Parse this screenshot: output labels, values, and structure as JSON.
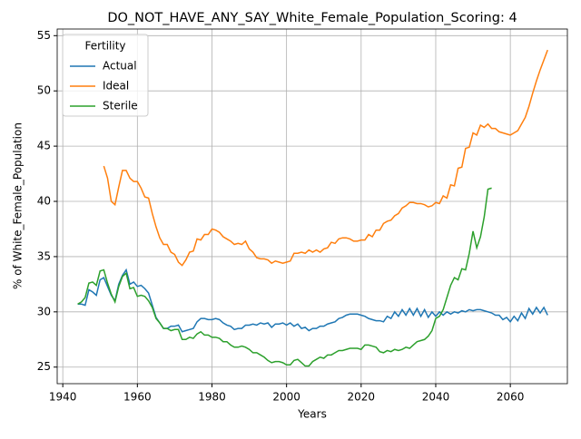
{
  "chart_data": {
    "type": "line",
    "title": "DO_NOT_HAVE_ANY_SAY_White_Female_Population_Scoring: 4",
    "x_label": "Years",
    "y_label": "% of White_Female_Population",
    "legend_title": "Fertility",
    "legend_position": "upper left",
    "grid": true,
    "xlim": [
      1938.5,
      2075.3
    ],
    "ylim": [
      23.5,
      55.6
    ],
    "xticks": [
      1940,
      1960,
      1980,
      2000,
      2020,
      2040,
      2060
    ],
    "yticks": [
      25,
      30,
      35,
      40,
      45,
      50,
      55
    ],
    "x": [
      1944,
      1945,
      1946,
      1947,
      1948,
      1949,
      1950,
      1951,
      1952,
      1953,
      1954,
      1955,
      1956,
      1957,
      1958,
      1959,
      1960,
      1961,
      1962,
      1963,
      1964,
      1965,
      1966,
      1967,
      1968,
      1969,
      1970,
      1971,
      1972,
      1973,
      1974,
      1975,
      1976,
      1977,
      1978,
      1979,
      1980,
      1981,
      1982,
      1983,
      1984,
      1985,
      1986,
      1987,
      1988,
      1989,
      1990,
      1991,
      1992,
      1993,
      1994,
      1995,
      1996,
      1997,
      1998,
      1999,
      2000,
      2001,
      2002,
      2003,
      2004,
      2005,
      2006,
      2007,
      2008,
      2009,
      2010,
      2011,
      2012,
      2013,
      2014,
      2015,
      2016,
      2017,
      2018,
      2019,
      2020,
      2021,
      2022,
      2023,
      2024,
      2025,
      2026,
      2027,
      2028,
      2029,
      2030,
      2031,
      2032,
      2033,
      2034,
      2035,
      2036,
      2037,
      2038,
      2039,
      2040,
      2041,
      2042,
      2043,
      2044,
      2045,
      2046,
      2047,
      2048,
      2049,
      2050,
      2051,
      2052,
      2053,
      2054,
      2055,
      2056,
      2057,
      2058,
      2059,
      2060,
      2061,
      2062,
      2063,
      2064,
      2065,
      2066,
      2067,
      2068,
      2069,
      2070
    ],
    "series": [
      {
        "name": "Actual",
        "color": "#1f77b4",
        "values": [
          30.7,
          30.7,
          30.6,
          32.0,
          31.8,
          31.5,
          32.9,
          33.1,
          32.3,
          31.5,
          31.0,
          32.5,
          33.3,
          33.8,
          32.5,
          32.7,
          32.3,
          32.4,
          32.1,
          31.7,
          30.6,
          29.5,
          29.0,
          28.5,
          28.5,
          28.7,
          28.7,
          28.8,
          28.2,
          28.3,
          28.4,
          28.5,
          29.1,
          29.4,
          29.4,
          29.3,
          29.3,
          29.4,
          29.3,
          29.0,
          28.8,
          28.7,
          28.4,
          28.5,
          28.5,
          28.8,
          28.8,
          28.9,
          28.8,
          29.0,
          28.9,
          29.0,
          28.6,
          28.9,
          28.9,
          29.0,
          28.8,
          29.0,
          28.7,
          28.9,
          28.5,
          28.6,
          28.3,
          28.5,
          28.5,
          28.7,
          28.7,
          28.9,
          29.0,
          29.1,
          29.4,
          29.5,
          29.7,
          29.8,
          29.8,
          29.8,
          29.7,
          29.6,
          29.4,
          29.3,
          29.2,
          29.2,
          29.1,
          29.6,
          29.4,
          30.0,
          29.6,
          30.2,
          29.7,
          30.3,
          29.7,
          30.3,
          29.6,
          30.2,
          29.5,
          30.0,
          29.6,
          30.0,
          29.7,
          30.0,
          29.8,
          30.0,
          29.9,
          30.1,
          30.0,
          30.2,
          30.1,
          30.2,
          30.2,
          30.1,
          30.0,
          29.9,
          29.7,
          29.7,
          29.3,
          29.5,
          29.1,
          29.6,
          29.2,
          29.9,
          29.4,
          30.3,
          29.8,
          30.4,
          29.9,
          30.4,
          29.7
        ]
      },
      {
        "name": "Ideal",
        "color": "#ff7f0e",
        "values": [
          null,
          null,
          null,
          null,
          null,
          null,
          null,
          43.2,
          42.1,
          40.0,
          39.7,
          41.3,
          42.8,
          42.8,
          42.1,
          41.8,
          41.8,
          41.2,
          40.4,
          40.3,
          38.9,
          37.7,
          36.7,
          36.1,
          36.1,
          35.4,
          35.2,
          34.5,
          34.2,
          34.7,
          35.4,
          35.5,
          36.6,
          36.5,
          37.0,
          37.0,
          37.5,
          37.4,
          37.2,
          36.8,
          36.6,
          36.4,
          36.1,
          36.2,
          36.1,
          36.4,
          35.7,
          35.4,
          34.9,
          34.8,
          34.8,
          34.7,
          34.4,
          34.6,
          34.5,
          34.4,
          34.5,
          34.6,
          35.3,
          35.3,
          35.4,
          35.3,
          35.6,
          35.4,
          35.6,
          35.4,
          35.7,
          35.8,
          36.3,
          36.2,
          36.6,
          36.7,
          36.7,
          36.6,
          36.4,
          36.4,
          36.5,
          36.5,
          37.0,
          36.8,
          37.4,
          37.4,
          38.0,
          38.2,
          38.3,
          38.7,
          38.9,
          39.4,
          39.6,
          39.9,
          39.9,
          39.8,
          39.8,
          39.7,
          39.5,
          39.6,
          39.9,
          39.8,
          40.5,
          40.3,
          41.5,
          41.4,
          43.0,
          43.1,
          44.8,
          44.9,
          46.2,
          46.0,
          46.9,
          46.7,
          47.0,
          46.6,
          46.6,
          46.3,
          46.2,
          46.1,
          46.0,
          46.2,
          46.4,
          47.0,
          47.6,
          48.6,
          49.8,
          50.9,
          51.9,
          52.8,
          53.7
        ]
      },
      {
        "name": "Sterile",
        "color": "#2ca02c",
        "values": [
          30.7,
          30.9,
          31.3,
          32.6,
          32.7,
          32.4,
          33.7,
          33.8,
          32.6,
          31.6,
          30.9,
          32.3,
          33.2,
          33.5,
          32.1,
          32.2,
          31.4,
          31.5,
          31.4,
          31.0,
          30.4,
          29.4,
          29.0,
          28.5,
          28.5,
          28.3,
          28.4,
          28.4,
          27.5,
          27.5,
          27.7,
          27.6,
          28.0,
          28.2,
          27.9,
          27.9,
          27.7,
          27.7,
          27.6,
          27.3,
          27.3,
          27.0,
          26.8,
          26.8,
          26.9,
          26.8,
          26.6,
          26.3,
          26.3,
          26.1,
          25.9,
          25.6,
          25.4,
          25.5,
          25.5,
          25.4,
          25.2,
          25.2,
          25.6,
          25.7,
          25.4,
          25.1,
          25.1,
          25.5,
          25.7,
          25.9,
          25.8,
          26.1,
          26.1,
          26.3,
          26.5,
          26.5,
          26.6,
          26.7,
          26.7,
          26.7,
          26.6,
          27.0,
          27.0,
          26.9,
          26.8,
          26.4,
          26.3,
          26.5,
          26.4,
          26.6,
          26.5,
          26.6,
          26.8,
          26.7,
          27.0,
          27.3,
          27.4,
          27.5,
          27.8,
          28.3,
          29.4,
          29.6,
          30.2,
          31.3,
          32.4,
          33.1,
          32.9,
          33.9,
          33.8,
          35.3,
          37.3,
          35.8,
          36.8,
          38.6,
          41.1,
          41.2,
          null,
          null,
          null,
          null,
          null,
          null,
          null,
          null,
          null,
          null,
          null,
          null,
          null,
          null,
          null
        ]
      }
    ]
  }
}
